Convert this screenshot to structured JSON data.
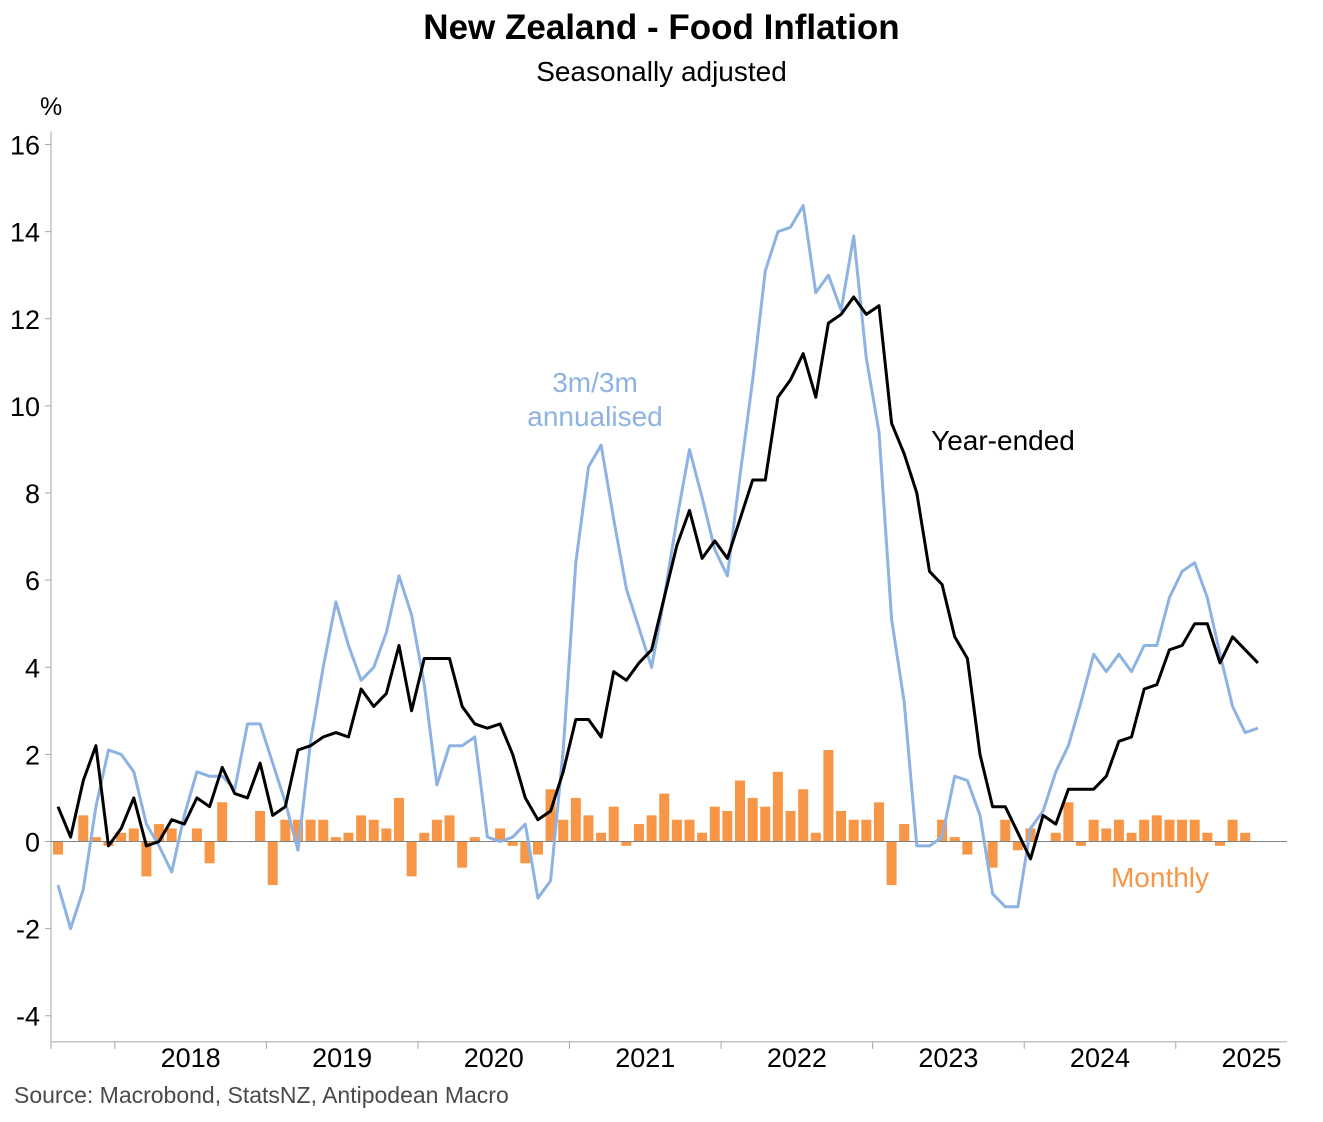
{
  "title": "New Zealand - Food Inflation",
  "subtitle": "Seasonally adjusted",
  "source": "Source: Macrobond, StatsNZ, Antipodean Macro",
  "chart_data": {
    "type": "line",
    "ylabel": "%",
    "ylim": [
      -4.6,
      16.3
    ],
    "yticks": [
      "16",
      "14",
      "12",
      "10",
      "8",
      "6",
      "4",
      "2",
      "0",
      "-2",
      "-4"
    ],
    "ytick_values": [
      16,
      14,
      12,
      10,
      8,
      6,
      4,
      2,
      0,
      -2,
      -4
    ],
    "year_labels": [
      "2018",
      "2019",
      "2020",
      "2021",
      "2022",
      "2023",
      "2024",
      "2025"
    ],
    "x_start": "2017-08",
    "x_end": "2025-11",
    "colors": {
      "year_ended": "#000000",
      "three_month": "#8db3e2",
      "monthly": "#f79646",
      "zero_line": "#808080",
      "axis": "#a6a6a6"
    },
    "series": [
      {
        "name": "Year-ended",
        "label": "Year-ended",
        "kind": "line",
        "values": [
          0.8,
          0.1,
          1.4,
          2.2,
          -0.1,
          0.3,
          1.0,
          -0.1,
          0.0,
          0.5,
          0.4,
          1.0,
          0.8,
          1.7,
          1.1,
          1.0,
          1.8,
          0.6,
          0.8,
          2.1,
          2.2,
          2.4,
          2.5,
          2.4,
          3.5,
          3.1,
          3.4,
          4.5,
          3.0,
          4.2,
          4.2,
          4.2,
          3.1,
          2.7,
          2.6,
          2.7,
          2.0,
          1.0,
          0.5,
          0.7,
          1.6,
          2.8,
          2.8,
          2.4,
          3.9,
          3.7,
          4.1,
          4.4,
          5.6,
          6.8,
          7.6,
          6.5,
          6.9,
          6.5,
          7.4,
          8.3,
          8.3,
          10.2,
          10.6,
          11.2,
          10.2,
          11.9,
          12.1,
          12.5,
          12.1,
          12.3,
          9.6,
          8.9,
          8.0,
          6.2,
          5.9,
          4.7,
          4.2,
          2.0,
          0.8,
          0.8,
          0.2,
          -0.4,
          0.6,
          0.4,
          1.2,
          1.2,
          1.2,
          1.5,
          2.3,
          2.4,
          3.5,
          3.6,
          4.4,
          4.5,
          5.0,
          5.0,
          4.1,
          4.7,
          4.4,
          4.1
        ]
      },
      {
        "name": "3m/3m annualised",
        "label_lines": [
          "3m/3m",
          "annualised"
        ],
        "kind": "line",
        "values": [
          -1.0,
          -2.0,
          -1.1,
          0.8,
          2.1,
          2.0,
          1.6,
          0.4,
          -0.1,
          -0.7,
          0.6,
          1.6,
          1.5,
          1.5,
          1.2,
          2.7,
          2.7,
          1.8,
          0.9,
          -0.2,
          2.3,
          4.0,
          5.5,
          4.5,
          3.7,
          4.0,
          4.8,
          6.1,
          5.2,
          3.6,
          1.3,
          2.2,
          2.2,
          2.4,
          0.1,
          0.0,
          0.1,
          0.4,
          -1.3,
          -0.9,
          2.1,
          6.4,
          8.6,
          9.1,
          7.4,
          5.8,
          4.9,
          4.0,
          5.6,
          7.4,
          9.0,
          7.9,
          6.7,
          6.1,
          8.4,
          10.6,
          13.1,
          14.0,
          14.1,
          14.6,
          12.6,
          13.0,
          12.2,
          13.9,
          11.1,
          9.4,
          5.1,
          3.2,
          -0.1,
          -0.1,
          0.1,
          1.5,
          1.4,
          0.6,
          -1.2,
          -1.5,
          -1.5,
          0.3,
          0.7,
          1.6,
          2.2,
          3.2,
          4.3,
          3.9,
          4.3,
          3.9,
          4.5,
          4.5,
          5.6,
          6.2,
          6.4,
          5.6,
          4.3,
          3.1,
          2.5,
          2.6
        ]
      },
      {
        "name": "Monthly",
        "label": "Monthly",
        "kind": "bar",
        "values": [
          -0.3,
          null,
          0.6,
          0.1,
          -0.1,
          0.2,
          0.3,
          -0.8,
          0.4,
          0.3,
          null,
          0.3,
          -0.5,
          0.9,
          null,
          null,
          0.7,
          -1.0,
          0.5,
          0.5,
          0.5,
          0.5,
          0.1,
          0.2,
          0.6,
          0.5,
          0.3,
          1.0,
          -0.8,
          0.2,
          0.5,
          0.6,
          -0.6,
          0.1,
          null,
          0.3,
          -0.1,
          -0.5,
          -0.3,
          1.2,
          0.5,
          1.0,
          0.6,
          0.2,
          0.8,
          -0.1,
          0.4,
          0.6,
          1.1,
          0.5,
          0.5,
          0.2,
          0.8,
          0.7,
          1.4,
          1.0,
          0.8,
          1.6,
          0.7,
          1.2,
          0.2,
          2.1,
          0.7,
          0.5,
          0.5,
          0.9,
          -1.0,
          0.4,
          null,
          null,
          0.5,
          0.1,
          -0.3,
          null,
          -0.6,
          0.5,
          -0.2,
          0.3,
          null,
          0.2,
          0.9,
          -0.1,
          0.5,
          0.3,
          0.5,
          0.2,
          0.5,
          0.6,
          0.5,
          0.5,
          0.5,
          0.2,
          -0.1,
          0.5,
          0.2,
          null
        ]
      }
    ]
  }
}
